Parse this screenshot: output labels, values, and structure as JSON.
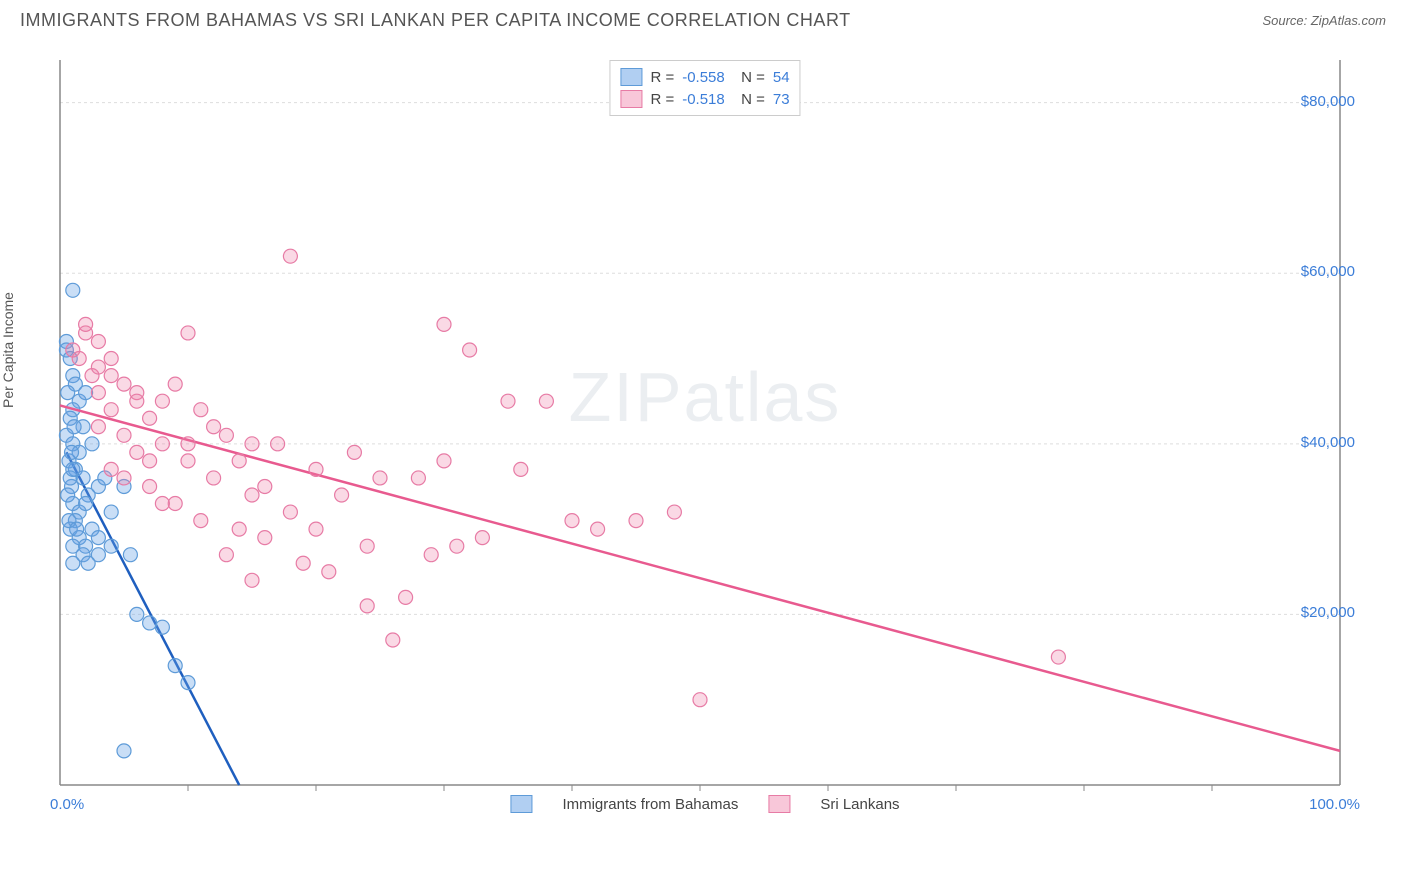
{
  "header": {
    "title": "IMMIGRANTS FROM BAHAMAS VS SRI LANKAN PER CAPITA INCOME CORRELATION CHART",
    "source": "Source: ZipAtlas.com"
  },
  "watermark": {
    "zip": "ZIP",
    "atlas": "atlas"
  },
  "chart": {
    "type": "scatter",
    "y_label": "Per Capita Income",
    "xlim": [
      0,
      100
    ],
    "ylim": [
      0,
      85000
    ],
    "x_ticks": {
      "left": "0.0%",
      "right": "100.0%"
    },
    "y_ticks": [
      {
        "value": 20000,
        "label": "$20,000"
      },
      {
        "value": 40000,
        "label": "$40,000"
      },
      {
        "value": 60000,
        "label": "$60,000"
      },
      {
        "value": 80000,
        "label": "$80,000"
      }
    ],
    "grid_color": "#dddddd",
    "axis_color": "#888888",
    "background_color": "#ffffff",
    "series": [
      {
        "name": "Immigrants from Bahamas",
        "color_fill": "rgba(100,160,230,0.35)",
        "color_stroke": "#5e9bd8",
        "line_color": "#1f5fbf",
        "marker_radius": 7,
        "R": "-0.558",
        "N": "54",
        "trend": {
          "x1": 0.5,
          "y1": 39000,
          "x2": 14,
          "y2": 0
        },
        "points": [
          [
            1.0,
            58000
          ],
          [
            0.5,
            52000
          ],
          [
            0.5,
            51000
          ],
          [
            0.8,
            50000
          ],
          [
            1.0,
            48000
          ],
          [
            1.2,
            47000
          ],
          [
            0.6,
            46000
          ],
          [
            1.5,
            45000
          ],
          [
            2.0,
            46000
          ],
          [
            1.0,
            44000
          ],
          [
            0.8,
            43000
          ],
          [
            1.8,
            42000
          ],
          [
            0.5,
            41000
          ],
          [
            1.0,
            40000
          ],
          [
            1.5,
            39000
          ],
          [
            2.5,
            40000
          ],
          [
            0.7,
            38000
          ],
          [
            1.2,
            37000
          ],
          [
            3.0,
            35000
          ],
          [
            1.8,
            36000
          ],
          [
            0.9,
            35000
          ],
          [
            2.2,
            34000
          ],
          [
            1.0,
            33000
          ],
          [
            1.5,
            32000
          ],
          [
            2.0,
            33000
          ],
          [
            3.5,
            36000
          ],
          [
            5.0,
            35000
          ],
          [
            1.2,
            31000
          ],
          [
            0.8,
            30000
          ],
          [
            2.5,
            30000
          ],
          [
            1.5,
            29000
          ],
          [
            1.0,
            28000
          ],
          [
            2.0,
            28000
          ],
          [
            3.0,
            27000
          ],
          [
            1.8,
            27000
          ],
          [
            1.0,
            26000
          ],
          [
            2.2,
            26000
          ],
          [
            3.0,
            29000
          ],
          [
            4.0,
            28000
          ],
          [
            5.5,
            27000
          ],
          [
            0.7,
            31000
          ],
          [
            1.3,
            30000
          ],
          [
            0.8,
            36000
          ],
          [
            0.6,
            34000
          ],
          [
            1.0,
            37000
          ],
          [
            4.0,
            32000
          ],
          [
            6.0,
            20000
          ],
          [
            7.0,
            19000
          ],
          [
            8.0,
            18500
          ],
          [
            9.0,
            14000
          ],
          [
            10.0,
            12000
          ],
          [
            5.0,
            4000
          ],
          [
            1.1,
            42000
          ],
          [
            0.9,
            39000
          ]
        ]
      },
      {
        "name": "Sri Lankans",
        "color_fill": "rgba(240,130,170,0.30)",
        "color_stroke": "#e77ba5",
        "line_color": "#e85a8f",
        "marker_radius": 7,
        "R": "-0.518",
        "N": "73",
        "trend": {
          "x1": 0,
          "y1": 44500,
          "x2": 100,
          "y2": 4000
        },
        "points": [
          [
            2,
            53000
          ],
          [
            3,
            52000
          ],
          [
            1.5,
            50000
          ],
          [
            4,
            50000
          ],
          [
            2.5,
            48000
          ],
          [
            5,
            47000
          ],
          [
            3,
            46000
          ],
          [
            6,
            46000
          ],
          [
            8,
            45000
          ],
          [
            4,
            44000
          ],
          [
            7,
            43000
          ],
          [
            10,
            53000
          ],
          [
            12,
            42000
          ],
          [
            3,
            42000
          ],
          [
            5,
            41000
          ],
          [
            8,
            40000
          ],
          [
            15,
            40000
          ],
          [
            6,
            39000
          ],
          [
            18,
            62000
          ],
          [
            10,
            38000
          ],
          [
            30,
            54000
          ],
          [
            32,
            51000
          ],
          [
            4,
            37000
          ],
          [
            12,
            36000
          ],
          [
            7,
            35000
          ],
          [
            20,
            37000
          ],
          [
            25,
            36000
          ],
          [
            30,
            38000
          ],
          [
            15,
            34000
          ],
          [
            9,
            33000
          ],
          [
            18,
            32000
          ],
          [
            22,
            34000
          ],
          [
            11,
            31000
          ],
          [
            28,
            36000
          ],
          [
            35,
            45000
          ],
          [
            38,
            45000
          ],
          [
            40,
            31000
          ],
          [
            42,
            30000
          ],
          [
            45,
            31000
          ],
          [
            48,
            32000
          ],
          [
            14,
            30000
          ],
          [
            16,
            29000
          ],
          [
            13,
            27000
          ],
          [
            19,
            26000
          ],
          [
            21,
            25000
          ],
          [
            17,
            40000
          ],
          [
            23,
            39000
          ],
          [
            33,
            29000
          ],
          [
            26,
            17000
          ],
          [
            24,
            21000
          ],
          [
            15,
            24000
          ],
          [
            6,
            45000
          ],
          [
            4,
            48000
          ],
          [
            2,
            54000
          ],
          [
            1,
            51000
          ],
          [
            3,
            49000
          ],
          [
            9,
            47000
          ],
          [
            11,
            44000
          ],
          [
            13,
            41000
          ],
          [
            50,
            10000
          ],
          [
            78,
            15000
          ],
          [
            10,
            40000
          ],
          [
            14,
            38000
          ],
          [
            8,
            33000
          ],
          [
            20,
            30000
          ],
          [
            24,
            28000
          ],
          [
            27,
            22000
          ],
          [
            5,
            36000
          ],
          [
            7,
            38000
          ],
          [
            16,
            35000
          ],
          [
            36,
            37000
          ],
          [
            29,
            27000
          ],
          [
            31,
            28000
          ]
        ]
      }
    ],
    "legend_bottom": [
      {
        "label": "Immigrants from Bahamas",
        "fill": "rgba(100,160,230,0.5)",
        "stroke": "#5e9bd8"
      },
      {
        "label": "Sri Lankans",
        "fill": "rgba(240,130,170,0.45)",
        "stroke": "#e77ba5"
      }
    ]
  }
}
